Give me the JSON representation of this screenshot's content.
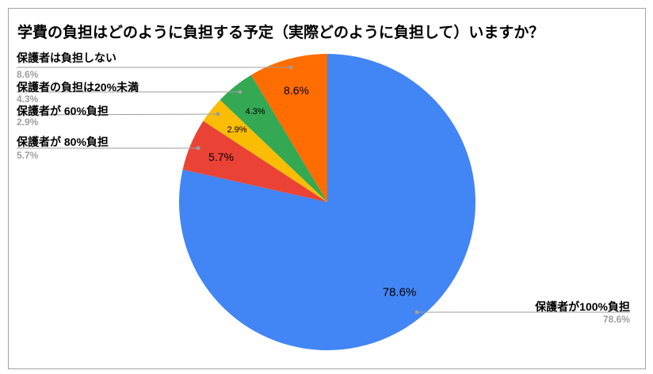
{
  "chart_data": {
    "type": "pie",
    "title": "学費の負担はどのように負担する予定（実際どのように負担して）いますか？",
    "unit": "%",
    "start_angle_deg": 0,
    "direction": "clockwise",
    "legend_position": "outside-callout-labels",
    "slices": [
      {
        "label": "保護者が100%負担",
        "value": 78.6,
        "display": "78.6%",
        "color": "#4285f4",
        "callout_side": "right"
      },
      {
        "label": "保護者が 80%負担",
        "value": 5.7,
        "display": "5.7%",
        "color": "#ea4335",
        "callout_side": "left"
      },
      {
        "label": "保護者が 60%負担",
        "value": 2.9,
        "display": "2.9%",
        "color": "#fbbc04",
        "callout_side": "left"
      },
      {
        "label": "保護者の負担は20%未満",
        "value": 4.3,
        "display": "4.3%",
        "color": "#34a853",
        "callout_side": "left"
      },
      {
        "label": "保護者は負担しない",
        "value": 8.6,
        "display": "8.6%",
        "color": "#ff6d01",
        "callout_side": "left"
      }
    ]
  },
  "colors": {
    "background": "#ffffff",
    "frame_border": "#a3a3a3",
    "callout_line": "#9e9e9e",
    "callout_pct_text": "#9e9e9e",
    "label_text": "#000000"
  }
}
